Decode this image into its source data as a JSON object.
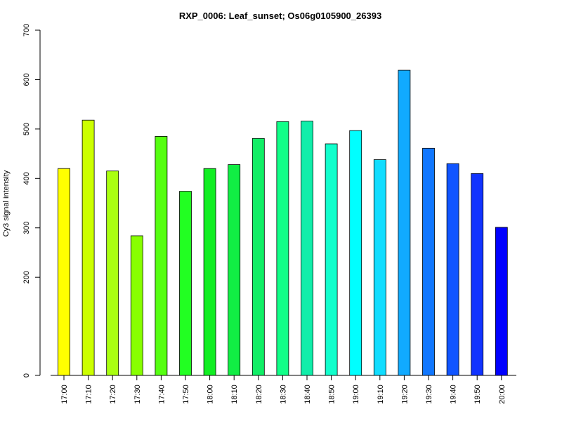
{
  "chart_data": {
    "type": "bar",
    "title": "RXP_0006: Leaf_sunset; Os06g0105900_26393",
    "xlabel": "",
    "ylabel": "Cy3 signal intensity",
    "categories": [
      "17:00",
      "17:10",
      "17:20",
      "17:30",
      "17:40",
      "17:50",
      "18:00",
      "18:10",
      "18:20",
      "18:30",
      "18:40",
      "18:50",
      "19:00",
      "19:10",
      "19:20",
      "19:30",
      "19:40",
      "19:50",
      "20:00"
    ],
    "values": [
      420,
      518,
      415,
      284,
      485,
      374,
      420,
      428,
      481,
      515,
      516,
      470,
      497,
      438,
      619,
      461,
      430,
      410,
      301
    ],
    "colors": [
      "#FFFF00",
      "#CCFF00",
      "#AAFF11",
      "#88FF00",
      "#55FF11",
      "#22FF22",
      "#11EE22",
      "#11EE44",
      "#11EE66",
      "#11FF88",
      "#11EEAA",
      "#11FFCC",
      "#00FFFF",
      "#11DDFF",
      "#11AAFF",
      "#1177FF",
      "#1155FF",
      "#1133FF",
      "#0000FF"
    ],
    "yticks": [
      0,
      200,
      300,
      400,
      500,
      600,
      700
    ],
    "ylim": [
      0,
      700
    ],
    "y_scale_breaks": [
      [
        0,
        0
      ],
      [
        200,
        0.2842
      ],
      [
        700,
        1
      ]
    ],
    "grid": false,
    "legend": "none"
  }
}
